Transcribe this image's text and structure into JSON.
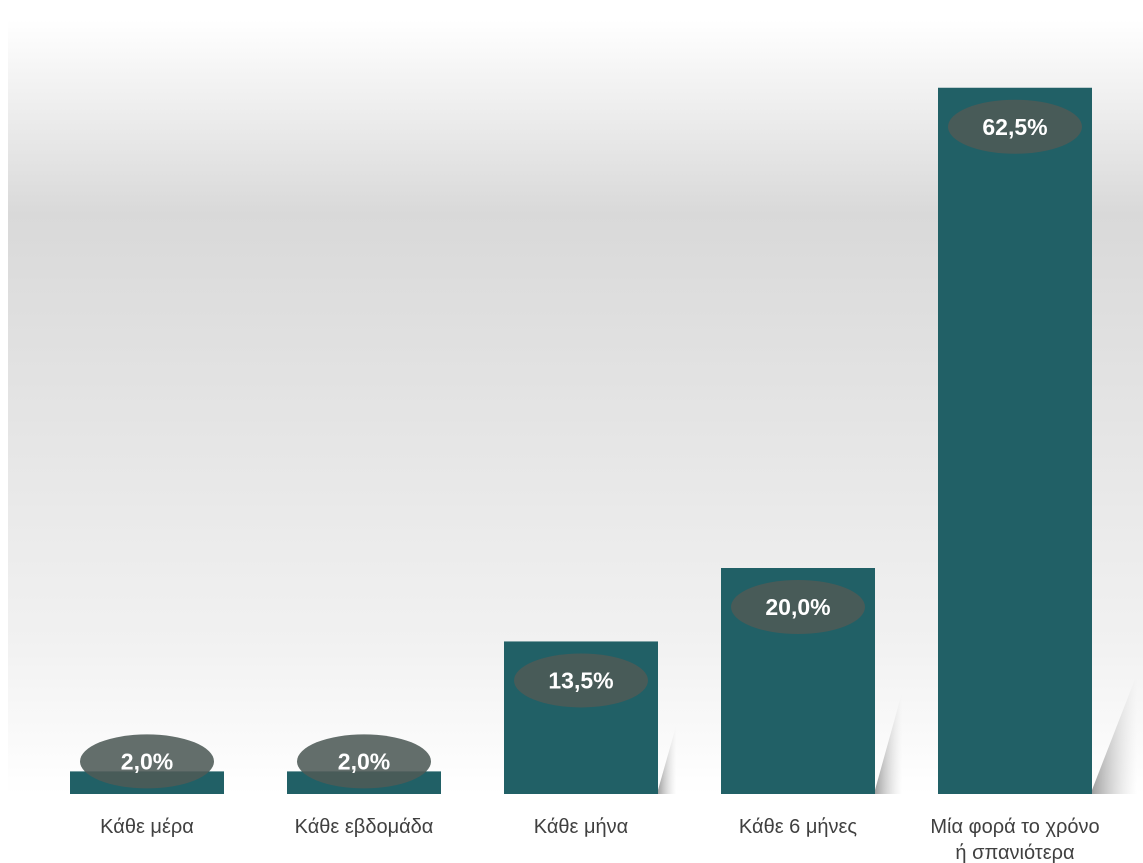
{
  "chart_data": {
    "type": "bar",
    "title": "",
    "xlabel": "",
    "ylabel": "",
    "categories": [
      [
        "Κάθε μέρα"
      ],
      [
        "Κάθε εβδομάδα"
      ],
      [
        "Κάθε μήνα"
      ],
      [
        "Κάθε 6 μήνες"
      ],
      [
        "Μία φορά το χρόνο",
        "ή σπανιότερα"
      ]
    ],
    "values": [
      2.0,
      2.0,
      13.5,
      20.0,
      62.5
    ],
    "data_labels": [
      "2,0%",
      "2,0%",
      "13,5%",
      "20,0%",
      "62,5%"
    ],
    "unit": "%",
    "ylim": [
      0,
      66
    ],
    "grid": false,
    "legend": "none",
    "colors": {
      "bar": "#216066",
      "label_ellipse": "#4d5a57",
      "label_text": "#ffffff",
      "tick_text": "#404040",
      "background_gradient_mid": "#d6d6d6"
    }
  }
}
